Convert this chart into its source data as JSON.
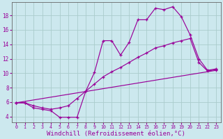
{
  "background_color": "#cce8ee",
  "grid_color": "#aacccc",
  "line_color": "#990099",
  "xlabel": "Windchill (Refroidissement éolien,°C)",
  "xlabel_fontsize": 6.5,
  "ylabel_values": [
    4,
    6,
    8,
    10,
    12,
    14,
    16,
    18
  ],
  "xlim": [
    -0.5,
    23.5
  ],
  "ylim": [
    3.2,
    19.8
  ],
  "series1": [
    [
      0,
      5.9
    ],
    [
      1,
      5.9
    ],
    [
      2,
      5.2
    ],
    [
      3,
      5.0
    ],
    [
      4,
      4.8
    ],
    [
      5,
      3.9
    ],
    [
      6,
      3.9
    ],
    [
      7,
      3.9
    ],
    [
      8,
      7.5
    ],
    [
      9,
      10.1
    ],
    [
      10,
      14.5
    ],
    [
      11,
      14.5
    ],
    [
      12,
      12.5
    ],
    [
      13,
      14.3
    ],
    [
      14,
      17.4
    ],
    [
      15,
      17.4
    ],
    [
      16,
      19.0
    ],
    [
      17,
      18.8
    ],
    [
      18,
      19.2
    ],
    [
      19,
      17.8
    ],
    [
      20,
      15.3
    ],
    [
      21,
      12.0
    ],
    [
      22,
      10.4
    ],
    [
      23,
      10.6
    ]
  ],
  "series2": [
    [
      0,
      5.9
    ],
    [
      1,
      5.9
    ],
    [
      2,
      5.5
    ],
    [
      3,
      5.2
    ],
    [
      4,
      5.0
    ],
    [
      5,
      5.2
    ],
    [
      6,
      5.5
    ],
    [
      7,
      6.5
    ],
    [
      8,
      7.5
    ],
    [
      9,
      8.5
    ],
    [
      10,
      9.5
    ],
    [
      11,
      10.2
    ],
    [
      12,
      10.8
    ],
    [
      13,
      11.5
    ],
    [
      14,
      12.2
    ],
    [
      15,
      12.8
    ],
    [
      16,
      13.5
    ],
    [
      17,
      13.8
    ],
    [
      18,
      14.2
    ],
    [
      19,
      14.5
    ],
    [
      20,
      14.8
    ],
    [
      21,
      11.5
    ],
    [
      22,
      10.3
    ],
    [
      23,
      10.5
    ]
  ],
  "series3": [
    [
      0,
      5.9
    ],
    [
      23,
      10.4
    ]
  ]
}
